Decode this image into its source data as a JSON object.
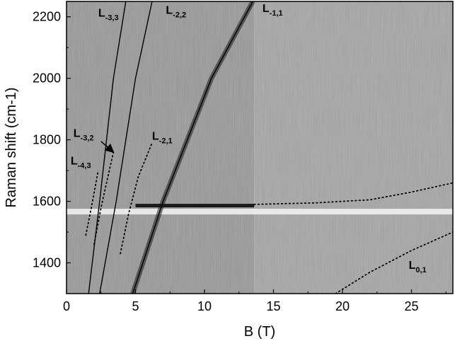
{
  "chart_data": {
    "type": "heatmap",
    "xlabel": "B (T)",
    "ylabel": "Raman shift (cm-1)",
    "xlim": [
      0,
      28
    ],
    "ylim": [
      1300,
      2250
    ],
    "xticks": [
      0,
      5,
      10,
      15,
      20,
      25
    ],
    "yticks": [
      1400,
      1600,
      1800,
      2000,
      2200
    ],
    "grid": false,
    "colors": {
      "background": "#9a9a9a",
      "dark_feature": "#1a1a1a",
      "bright_feature": "#f5f5f5",
      "lines": "#000000"
    },
    "horizontal_band": {
      "raman_shift": 1585,
      "x_start": 0,
      "x_end": 28,
      "note_split_at_B": 13.6
    },
    "solid_lines": [
      {
        "label_main": "L",
        "label_sub": "-3,3",
        "points": [
          [
            1.6,
            1300
          ],
          [
            2.4,
            1600
          ],
          [
            3.4,
            2000
          ],
          [
            4.3,
            2250
          ]
        ]
      },
      {
        "label_main": "L",
        "label_sub": "-2,2",
        "points": [
          [
            2.4,
            1300
          ],
          [
            3.6,
            1600
          ],
          [
            5.0,
            2000
          ],
          [
            6.2,
            2250
          ]
        ]
      },
      {
        "label_main": "L",
        "label_sub": "-1,1",
        "points": [
          [
            4.8,
            1300
          ],
          [
            7.0,
            1600
          ],
          [
            10.5,
            2000
          ],
          [
            13.5,
            2250
          ]
        ]
      }
    ],
    "dotted_lines": [
      {
        "label_main": "L",
        "label_sub": "-4,3",
        "points": [
          [
            1.4,
            1490
          ],
          [
            1.8,
            1580
          ],
          [
            2.3,
            1700
          ]
        ]
      },
      {
        "label_main": "L",
        "label_sub": "-3,2",
        "points": [
          [
            2.0,
            1460
          ],
          [
            2.5,
            1580
          ],
          [
            3.4,
            1760
          ]
        ]
      },
      {
        "label_main": "L",
        "label_sub": "-2,1",
        "points": [
          [
            3.9,
            1430
          ],
          [
            4.5,
            1560
          ],
          [
            5.2,
            1680
          ],
          [
            6.2,
            1790
          ]
        ]
      },
      {
        "label_main": "",
        "label_sub": "",
        "points": [
          [
            13.6,
            1590
          ],
          [
            18,
            1595
          ],
          [
            22,
            1605
          ],
          [
            25,
            1630
          ],
          [
            28,
            1660
          ]
        ]
      },
      {
        "label_main": "L",
        "label_sub": "0,1",
        "points": [
          [
            19.5,
            1300
          ],
          [
            22,
            1370
          ],
          [
            25,
            1440
          ],
          [
            28,
            1500
          ]
        ]
      }
    ],
    "annotations": [
      {
        "main": "L",
        "sub": "-3,3",
        "x": 2.3,
        "y": 2200
      },
      {
        "main": "L",
        "sub": "-2,2",
        "x": 7.2,
        "y": 2210
      },
      {
        "main": "L",
        "sub": "-1,1",
        "x": 14.2,
        "y": 2215
      },
      {
        "main": "L",
        "sub": "-3,2",
        "x": 0.5,
        "y": 1810
      },
      {
        "main": "L",
        "sub": "-2,1",
        "x": 6.2,
        "y": 1800
      },
      {
        "main": "L",
        "sub": "-4,3",
        "x": 0.3,
        "y": 1720
      },
      {
        "main": "L",
        "sub": "0,1",
        "x": 24.8,
        "y": 1380
      }
    ],
    "arrow": {
      "from": [
        2.5,
        1795
      ],
      "to": [
        3.4,
        1760
      ]
    }
  }
}
